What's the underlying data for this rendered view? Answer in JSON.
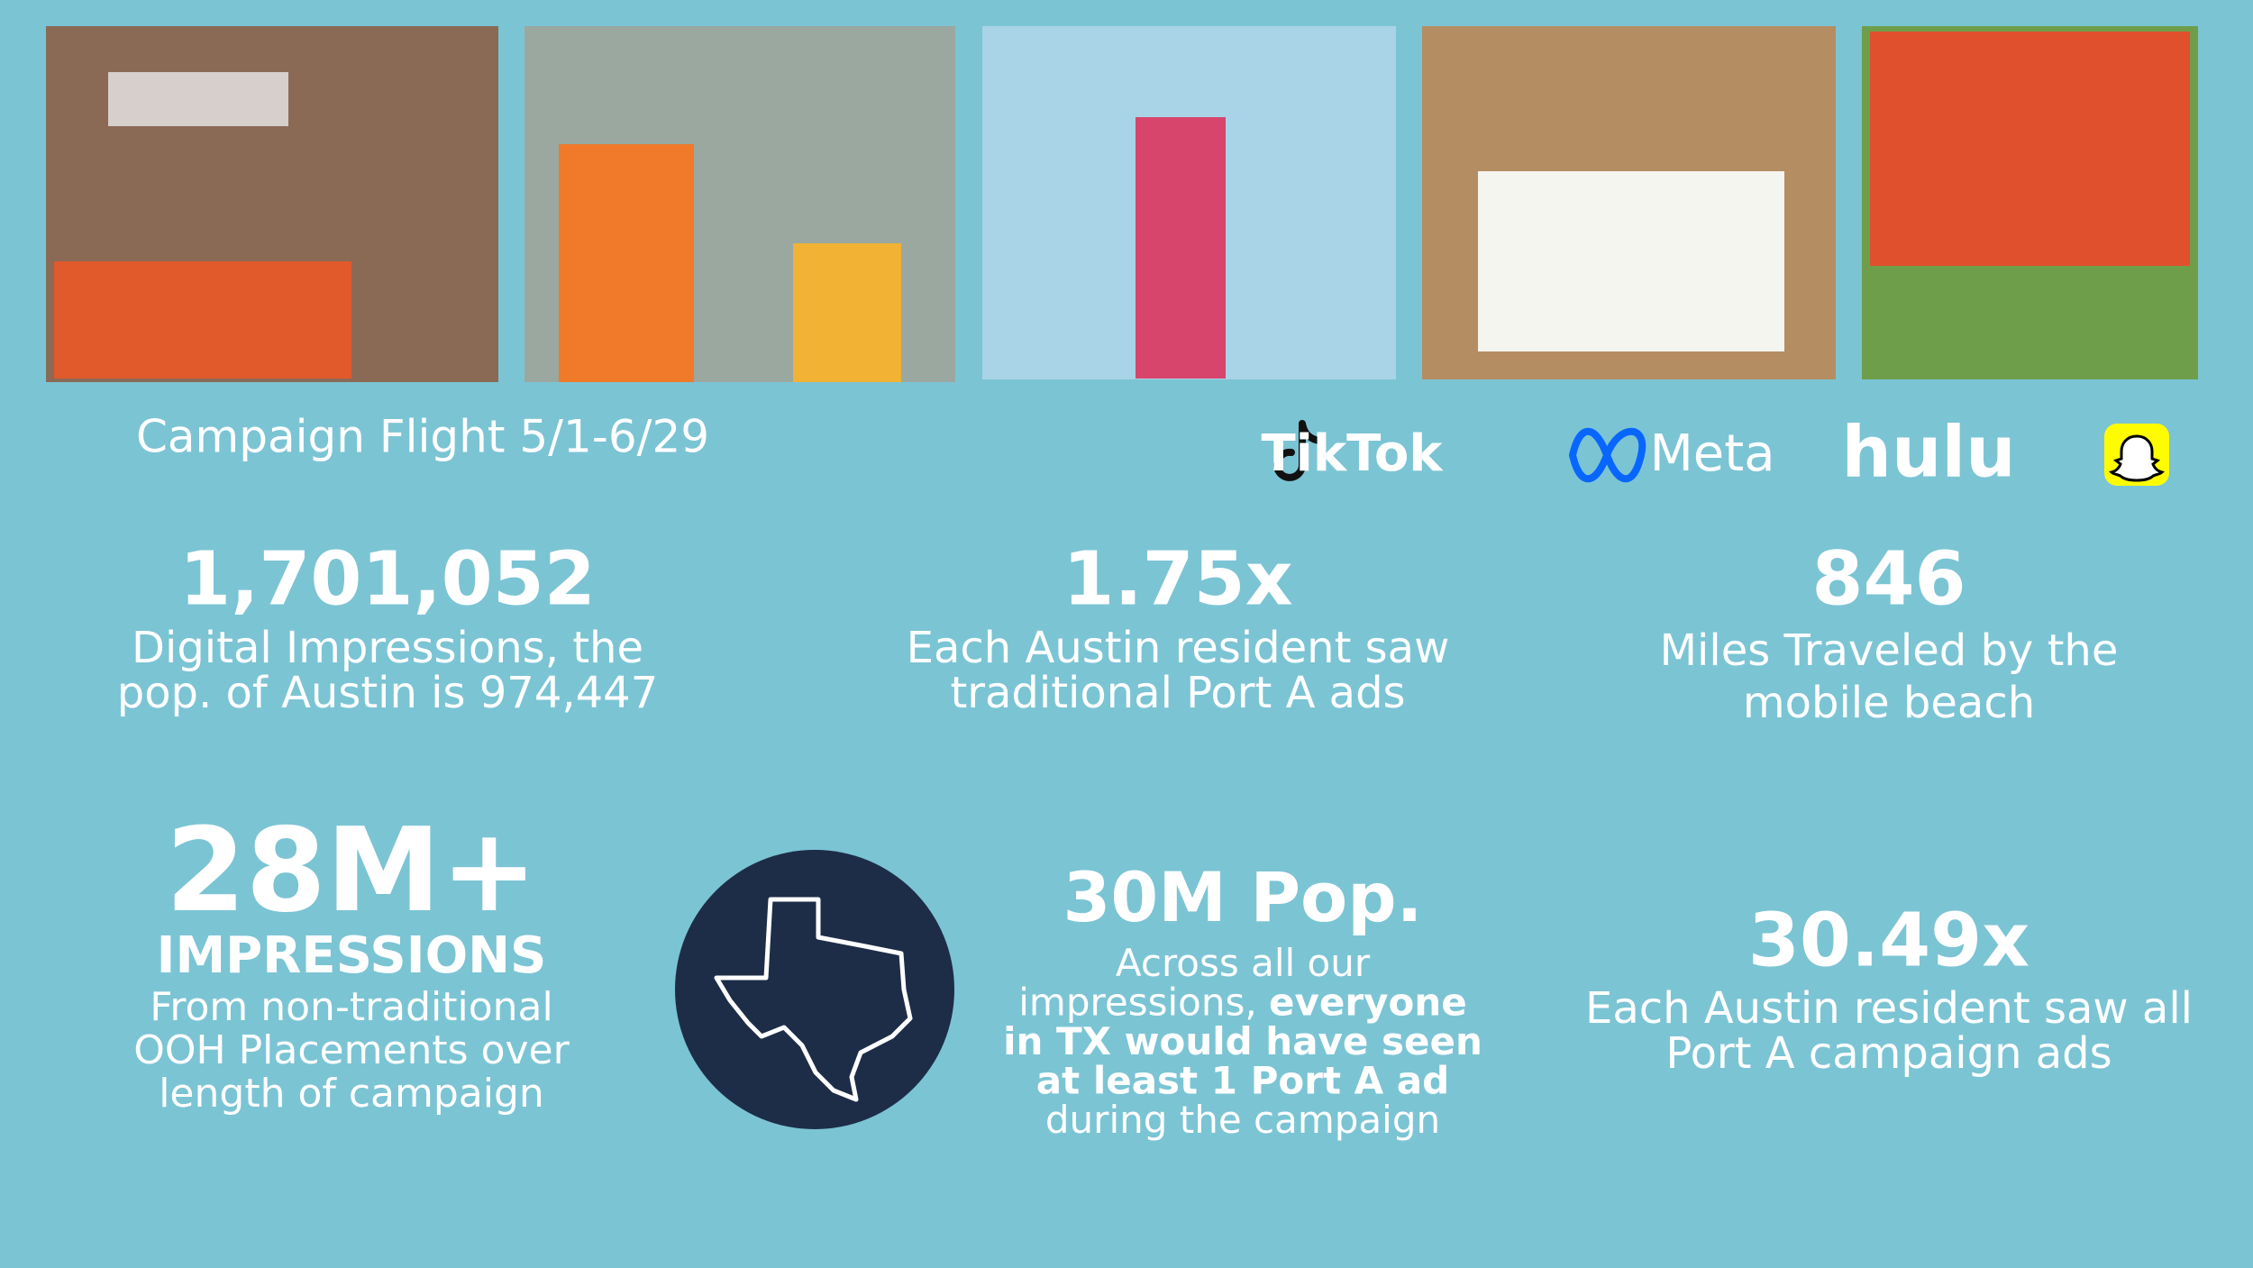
{
  "header": {
    "campaign_flight": "Campaign Flight 5/1-6/29"
  },
  "platforms": [
    "TikTok",
    "Meta",
    "hulu"
  ],
  "stats": [
    {
      "value": "1,701,052",
      "lines": [
        "Digital Impressions, the",
        "pop. of Austin is 974,447"
      ]
    },
    {
      "value": "1.75x",
      "lines": [
        "Each Austin resident saw",
        "traditional Port A ads"
      ]
    },
    {
      "value": "846",
      "lines": [
        "Miles Traveled by the",
        "mobile beach"
      ]
    }
  ],
  "ooh": {
    "value": "28M+",
    "heading": "IMPRESSIONS",
    "lines": [
      "From non-traditional",
      "OOH Placements over",
      "length of campaign"
    ]
  },
  "population": {
    "value": "30M Pop.",
    "lines": [
      [
        {
          "text": "Across all our",
          "bold": false
        }
      ],
      [
        {
          "text": "impressions, ",
          "bold": false
        },
        {
          "text": "everyone",
          "bold": true
        }
      ],
      [
        {
          "text": "in TX would have seen",
          "bold": true
        }
      ],
      [
        {
          "text": "at least 1 Port A ad",
          "bold": true
        }
      ],
      [
        {
          "text": "during the campaign",
          "bold": false
        }
      ]
    ]
  },
  "all_ads": {
    "value": "30.49x",
    "lines": [
      "Each Austin resident saw all",
      "Port A campaign ads"
    ]
  }
}
